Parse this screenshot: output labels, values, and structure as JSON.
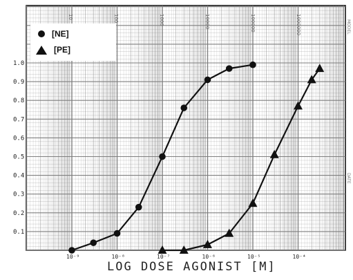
{
  "chart_data": {
    "type": "line",
    "xlabel": "LOG DOSE AGONIST [M]",
    "ylabel": "",
    "x_scale": "log",
    "xlim": [
      1e-09,
      0.0003
    ],
    "ylim": [
      0,
      1.0
    ],
    "grid": true,
    "legend_position": "top-left",
    "x_tick_labels": [
      {
        "x": 1e-09,
        "label": "10⁻⁹"
      },
      {
        "x": 1e-08,
        "label": "10⁻⁸"
      },
      {
        "x": 1e-07,
        "label": "10⁻⁷"
      },
      {
        "x": 1e-06,
        "label": "10⁻⁶"
      },
      {
        "x": 1e-05,
        "label": "10⁻⁵"
      },
      {
        "x": 0.0001,
        "label": "10⁻⁴"
      }
    ],
    "y_tick_labels": [
      "0.1",
      "0.2",
      "0.3",
      "0.4",
      "0.5",
      "0.6",
      "0.7",
      "0.8",
      "0.9",
      "1.0"
    ],
    "top_scale_labels": [
      "10",
      "100",
      "1000",
      "10000",
      "100000",
      "1000000"
    ],
    "right_edge_labels": [
      "MODEL",
      "DATE"
    ],
    "series": [
      {
        "name": "[NE]",
        "marker": "circle",
        "color": "#111111",
        "points": [
          {
            "x": 1e-09,
            "y": 0.0
          },
          {
            "x": 3e-09,
            "y": 0.04
          },
          {
            "x": 1e-08,
            "y": 0.09
          },
          {
            "x": 3e-08,
            "y": 0.23
          },
          {
            "x": 1e-07,
            "y": 0.5
          },
          {
            "x": 3e-07,
            "y": 0.76
          },
          {
            "x": 1e-06,
            "y": 0.91
          },
          {
            "x": 3e-06,
            "y": 0.97
          },
          {
            "x": 1e-05,
            "y": 0.99
          }
        ]
      },
      {
        "name": "[PE]",
        "marker": "triangle",
        "color": "#111111",
        "points": [
          {
            "x": 1e-07,
            "y": 0.0
          },
          {
            "x": 3e-07,
            "y": 0.0
          },
          {
            "x": 1e-06,
            "y": 0.03
          },
          {
            "x": 3e-06,
            "y": 0.09
          },
          {
            "x": 1e-05,
            "y": 0.25
          },
          {
            "x": 3e-05,
            "y": 0.51
          },
          {
            "x": 0.0001,
            "y": 0.77
          },
          {
            "x": 0.0002,
            "y": 0.91
          },
          {
            "x": 0.0003,
            "y": 0.97
          }
        ]
      }
    ]
  },
  "colors": {
    "ink": "#111111",
    "grid": "#7a7a7a",
    "paper": "#ffffff"
  }
}
